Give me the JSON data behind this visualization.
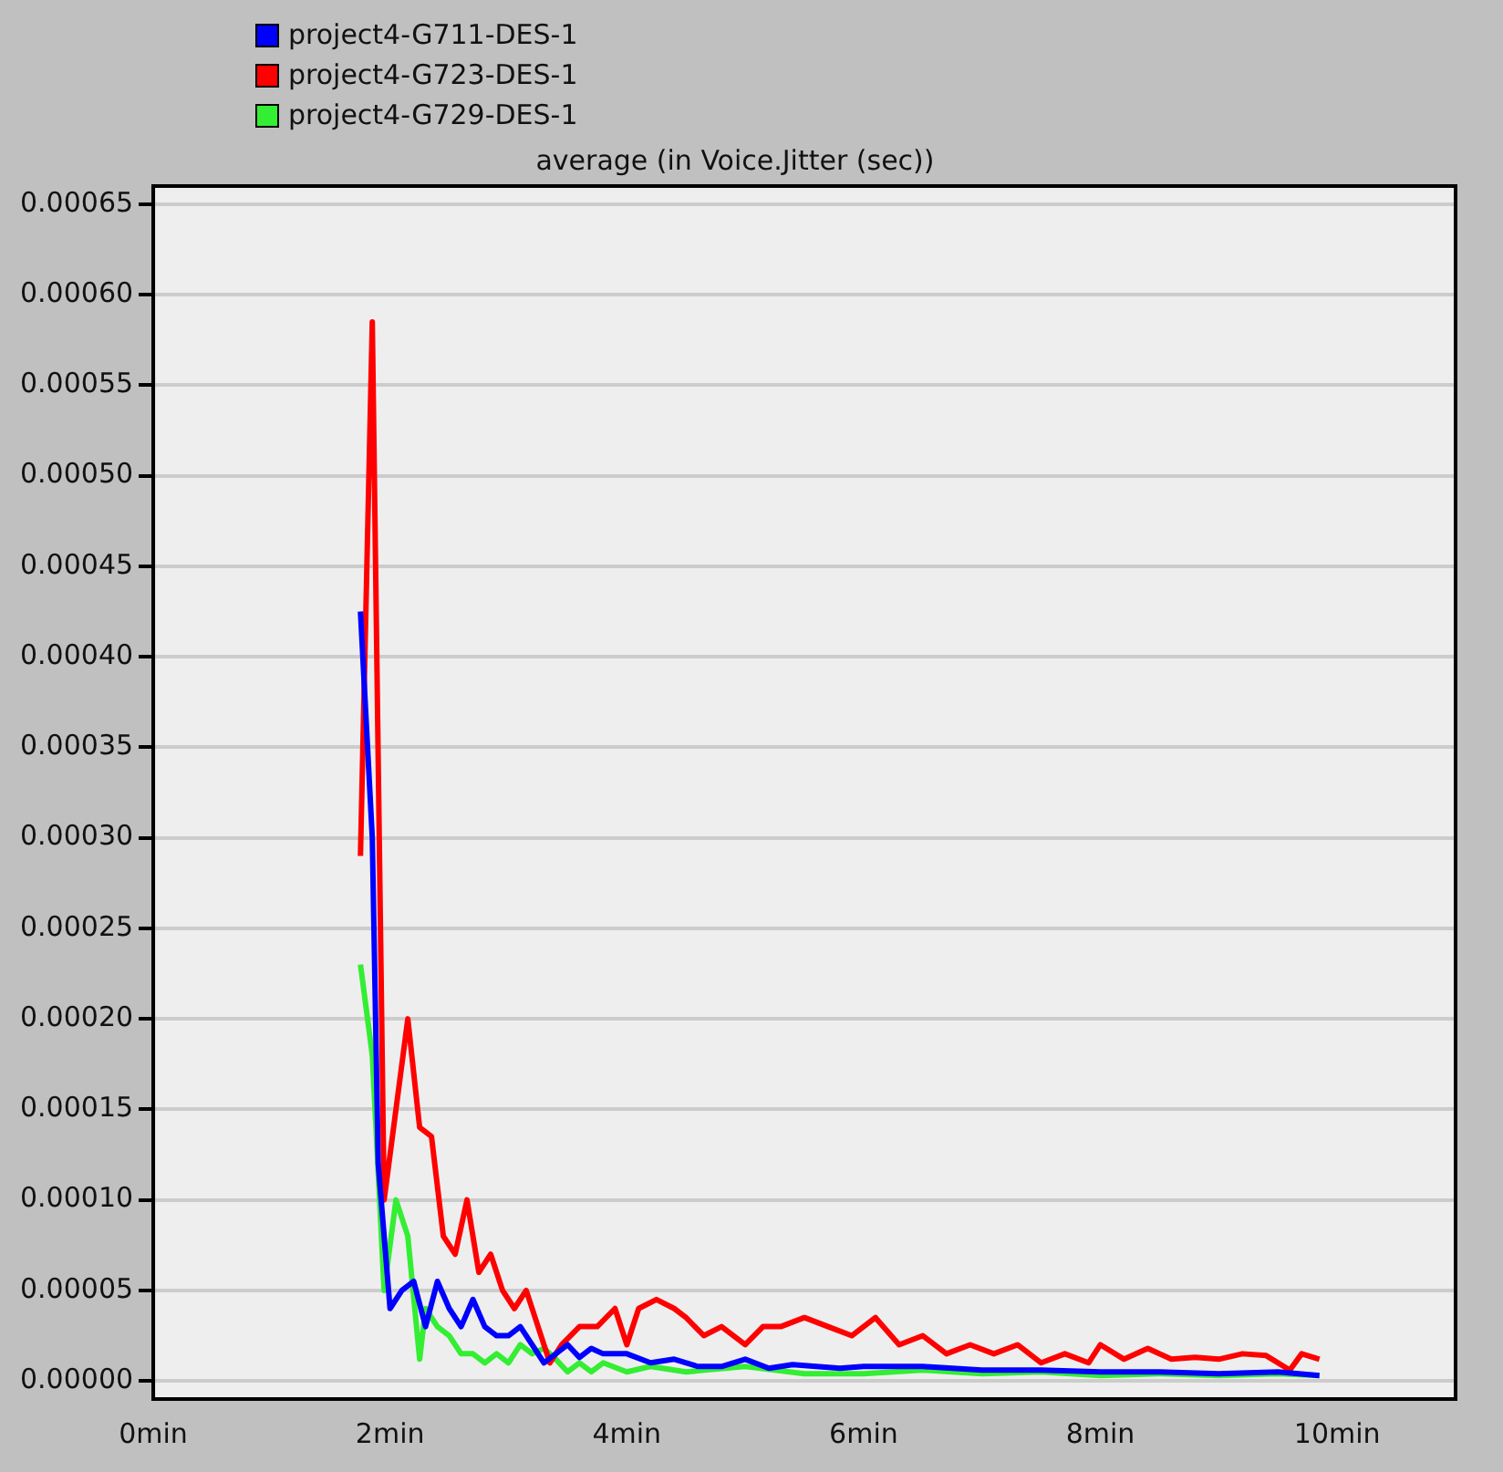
{
  "chart_data": {
    "type": "line",
    "title": "average (in Voice.Jitter (sec))",
    "legend": "top left",
    "grid": "y",
    "marker": "none",
    "line_style": "solid",
    "xlim": [
      0,
      11
    ],
    "xticks": [
      {
        "value": 0,
        "label": "0min"
      },
      {
        "value": 2,
        "label": "2min"
      },
      {
        "value": 4,
        "label": "4min"
      },
      {
        "value": 6,
        "label": "6min"
      },
      {
        "value": 8,
        "label": "8min"
      },
      {
        "value": 10,
        "label": "10min"
      }
    ],
    "ylim": [
      -1e-05,
      0.00066
    ],
    "yticks": [
      {
        "value": 0,
        "label": "0.00000"
      },
      {
        "value": 5e-05,
        "label": "0.00005"
      },
      {
        "value": 0.0001,
        "label": "0.00010"
      },
      {
        "value": 0.00015,
        "label": "0.00015"
      },
      {
        "value": 0.0002,
        "label": "0.00020"
      },
      {
        "value": 0.00025,
        "label": "0.00025"
      },
      {
        "value": 0.0003,
        "label": "0.00030"
      },
      {
        "value": 0.00035,
        "label": "0.00035"
      },
      {
        "value": 0.0004,
        "label": "0.00040"
      },
      {
        "value": 0.00045,
        "label": "0.00045"
      },
      {
        "value": 0.0005,
        "label": "0.00050"
      },
      {
        "value": 0.00055,
        "label": "0.00055"
      },
      {
        "value": 0.0006,
        "label": "0.00060"
      },
      {
        "value": 0.00065,
        "label": "0.00065"
      }
    ],
    "series": [
      {
        "name": "project4-G711-DES-1",
        "color": "#0000ff",
        "x": [
          1.75,
          1.85,
          1.9,
          2.0,
          2.1,
          2.2,
          2.3,
          2.4,
          2.5,
          2.6,
          2.7,
          2.8,
          2.9,
          3.0,
          3.1,
          3.2,
          3.3,
          3.4,
          3.5,
          3.6,
          3.7,
          3.8,
          4.0,
          4.2,
          4.4,
          4.6,
          4.8,
          5.0,
          5.2,
          5.4,
          5.6,
          5.8,
          6.0,
          6.5,
          7.0,
          7.5,
          8.0,
          8.5,
          9.0,
          9.5,
          9.85
        ],
        "values": [
          0.000425,
          0.0003,
          0.00012,
          4e-05,
          5e-05,
          5.5e-05,
          3e-05,
          5.5e-05,
          4e-05,
          3e-05,
          4.5e-05,
          3e-05,
          2.5e-05,
          2.5e-05,
          3e-05,
          2e-05,
          1e-05,
          1.5e-05,
          2e-05,
          1.3e-05,
          1.8e-05,
          1.5e-05,
          1.5e-05,
          1e-05,
          1.2e-05,
          8e-06,
          8e-06,
          1.2e-05,
          7e-06,
          9e-06,
          8e-06,
          7e-06,
          8e-06,
          8e-06,
          6e-06,
          6e-06,
          5e-06,
          5e-06,
          4e-06,
          5e-06,
          3e-06
        ]
      },
      {
        "name": "project4-G723-DES-1",
        "color": "#ff0000",
        "x": [
          1.75,
          1.85,
          1.95,
          2.05,
          2.15,
          2.25,
          2.35,
          2.45,
          2.55,
          2.65,
          2.75,
          2.85,
          2.95,
          3.05,
          3.15,
          3.25,
          3.35,
          3.45,
          3.6,
          3.75,
          3.9,
          4.0,
          4.1,
          4.25,
          4.4,
          4.5,
          4.65,
          4.8,
          5.0,
          5.15,
          5.3,
          5.5,
          5.7,
          5.9,
          6.1,
          6.3,
          6.5,
          6.7,
          6.9,
          7.1,
          7.3,
          7.5,
          7.7,
          7.9,
          8.0,
          8.2,
          8.4,
          8.6,
          8.8,
          9.0,
          9.2,
          9.4,
          9.6,
          9.7,
          9.85
        ],
        "values": [
          0.00029,
          0.000585,
          0.0001,
          0.00015,
          0.0002,
          0.00014,
          0.000135,
          8e-05,
          7e-05,
          0.0001,
          6e-05,
          7e-05,
          5e-05,
          4e-05,
          5e-05,
          3e-05,
          1e-05,
          2e-05,
          3e-05,
          3e-05,
          4e-05,
          2e-05,
          4e-05,
          4.5e-05,
          4e-05,
          3.5e-05,
          2.5e-05,
          3e-05,
          2e-05,
          3e-05,
          3e-05,
          3.5e-05,
          3e-05,
          2.5e-05,
          3.5e-05,
          2e-05,
          2.5e-05,
          1.5e-05,
          2e-05,
          1.5e-05,
          2e-05,
          1e-05,
          1.5e-05,
          1e-05,
          2e-05,
          1.2e-05,
          1.8e-05,
          1.2e-05,
          1.3e-05,
          1.2e-05,
          1.5e-05,
          1.4e-05,
          6e-06,
          1.5e-05,
          1.2e-05
        ]
      },
      {
        "name": "project4-G729-DES-1",
        "color": "#33ee33",
        "x": [
          1.75,
          1.85,
          1.95,
          2.05,
          2.15,
          2.25,
          2.3,
          2.4,
          2.5,
          2.6,
          2.7,
          2.8,
          2.9,
          3.0,
          3.1,
          3.2,
          3.3,
          3.4,
          3.5,
          3.6,
          3.7,
          3.8,
          4.0,
          4.2,
          4.5,
          5.0,
          5.5,
          6.0,
          6.5,
          7.0,
          7.5,
          8.0,
          8.5,
          9.0,
          9.5,
          9.85
        ],
        "values": [
          0.00023,
          0.00018,
          5e-05,
          0.0001,
          8e-05,
          1.2e-05,
          4e-05,
          3e-05,
          2.5e-05,
          1.5e-05,
          1.5e-05,
          1e-05,
          1.5e-05,
          1e-05,
          2e-05,
          1.5e-05,
          1.8e-05,
          1.2e-05,
          5e-06,
          1e-05,
          5e-06,
          1e-05,
          5e-06,
          8e-06,
          5e-06,
          8e-06,
          4e-06,
          4e-06,
          6e-06,
          4e-06,
          5e-06,
          3e-06,
          4e-06,
          3e-06,
          4e-06,
          3e-06
        ]
      }
    ]
  }
}
